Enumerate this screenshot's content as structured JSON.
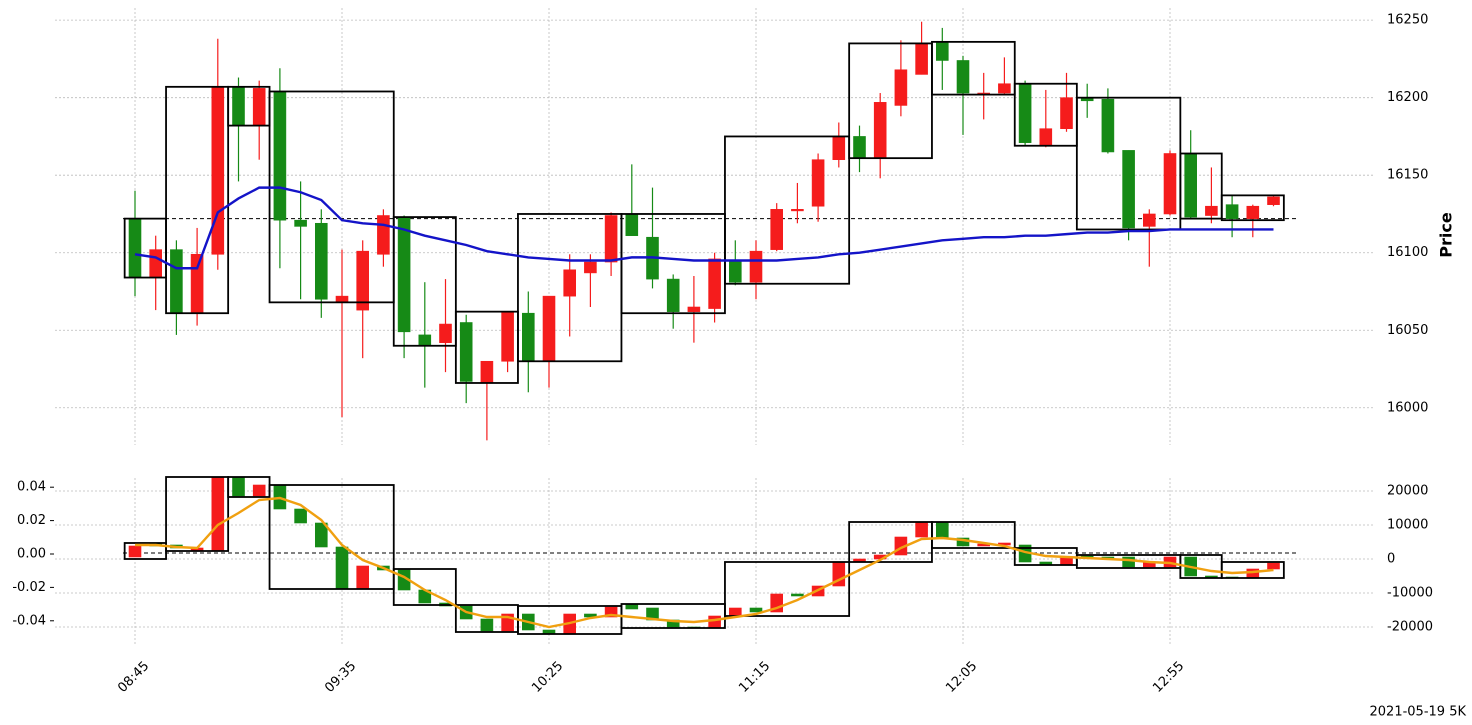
{
  "chart_data": [
    {
      "type": "candlestick",
      "y_label": "Price",
      "up_color": "#f51c1c",
      "down_color": "#168a16",
      "open": [
        16122,
        16084,
        16102,
        16061,
        16099,
        16207,
        16182,
        16204,
        16121,
        16119,
        16068,
        16063,
        16099,
        16123,
        16047,
        16042,
        16055,
        16016,
        16030,
        16061,
        16030,
        16072,
        16087,
        16094,
        16125,
        16110,
        16083,
        16062,
        16064,
        16095,
        16081,
        16102,
        16127,
        16130,
        16160,
        16175,
        16161,
        16195,
        16215,
        16236,
        16224,
        16202,
        16203,
        16209,
        16169,
        16180,
        16200,
        16199,
        16166,
        16117,
        16125,
        16164,
        16124,
        16131,
        16122,
        16131
      ],
      "high": [
        16140,
        16111,
        16108,
        16116,
        16238,
        16213,
        16211,
        16219,
        16146,
        16128,
        16102,
        16108,
        16128,
        16124,
        16081,
        16083,
        16060,
        16030,
        16062,
        16075,
        16072,
        16099,
        16099,
        16126,
        16157,
        16142,
        16086,
        16085,
        16100,
        16108,
        16108,
        16132,
        16145,
        16164,
        16184,
        16182,
        16203,
        16237,
        16249,
        16245,
        16227,
        16216,
        16226,
        16211,
        16205,
        16216,
        16209,
        16206,
        16166,
        16128,
        16166,
        16179,
        16155,
        16137,
        16131,
        16137
      ],
      "low": [
        16072,
        16063,
        16047,
        16053,
        16089,
        16146,
        16160,
        16090,
        16070,
        16058,
        15994,
        16032,
        16091,
        16032,
        16013,
        16023,
        16003,
        15979,
        16023,
        16010,
        16013,
        16046,
        16065,
        16085,
        16111,
        16077,
        16051,
        16042,
        16055,
        16079,
        16070,
        16101,
        16119,
        16120,
        16155,
        16152,
        16148,
        16188,
        16215,
        16205,
        16176,
        16186,
        16202,
        16169,
        16168,
        16178,
        16187,
        16164,
        16108,
        16091,
        16124,
        16122,
        16119,
        16110,
        16110,
        16130
      ],
      "close": [
        16084,
        16102,
        16061,
        16099,
        16207,
        16182,
        16206,
        16121,
        16117,
        16070,
        16072,
        16101,
        16124,
        16049,
        16040,
        16054,
        16017,
        16030,
        16062,
        16030,
        16072,
        16089,
        16094,
        16124,
        16111,
        16083,
        16062,
        16065,
        16096,
        16081,
        16101,
        16128,
        16128,
        16160,
        16175,
        16161,
        16197,
        16218,
        16235,
        16224,
        16203,
        16203,
        16209,
        16171,
        16180,
        16200,
        16198,
        16165,
        16116,
        16125,
        16164,
        16123,
        16130,
        16122,
        16130,
        16136
      ],
      "lines": [
        {
          "color": "#1414c8",
          "values": [
            16099,
            16097,
            16090,
            16090,
            16126,
            16135,
            16142,
            16142,
            16139,
            16134,
            16121,
            16119,
            16118,
            16115,
            16111,
            16108,
            16105,
            16101,
            16099,
            16097,
            16096,
            16095,
            16095,
            16095,
            16097,
            16097,
            16096,
            16095,
            16095,
            16095,
            16095,
            16095,
            16096,
            16097,
            16099,
            16100,
            16102,
            16104,
            16106,
            16108,
            16109,
            16110,
            16110,
            16111,
            16111,
            16112,
            16113,
            16113,
            16114,
            16114,
            16115,
            16115,
            16115,
            16115,
            16115,
            16115
          ]
        }
      ],
      "boxes": [
        {
          "from": 0,
          "to": 1,
          "top": 16122,
          "bottom": 16084
        },
        {
          "from": 2,
          "to": 4,
          "top": 16207,
          "bottom": 16061
        },
        {
          "from": 5,
          "to": 6,
          "top": 16207,
          "bottom": 16182
        },
        {
          "from": 7,
          "to": 12,
          "top": 16204,
          "bottom": 16068
        },
        {
          "from": 13,
          "to": 15,
          "top": 16123,
          "bottom": 16040
        },
        {
          "from": 16,
          "to": 18,
          "top": 16062,
          "bottom": 16016
        },
        {
          "from": 19,
          "to": 23,
          "top": 16125,
          "bottom": 16030
        },
        {
          "from": 24,
          "to": 28,
          "top": 16125,
          "bottom": 16061
        },
        {
          "from": 29,
          "to": 34,
          "top": 16175,
          "bottom": 16080
        },
        {
          "from": 35,
          "to": 38,
          "top": 16235,
          "bottom": 16161
        },
        {
          "from": 39,
          "to": 42,
          "top": 16236,
          "bottom": 16202
        },
        {
          "from": 43,
          "to": 45,
          "top": 16209,
          "bottom": 16169
        },
        {
          "from": 46,
          "to": 50,
          "top": 16200,
          "bottom": 16115
        },
        {
          "from": 51,
          "to": 52,
          "top": 16164,
          "bottom": 16122
        },
        {
          "from": 53,
          "to": 55,
          "top": 16137,
          "bottom": 16121
        }
      ],
      "reference_line": 16122,
      "ylim": [
        15976,
        16263
      ],
      "yticks": [
        16000,
        16050,
        16100,
        16150,
        16200,
        16250
      ],
      "grid": true
    },
    {
      "type": "candlestick",
      "up_color": "#f51c1c",
      "down_color": "#168a16",
      "categories": [
        "08:45",
        null,
        null,
        null,
        null,
        null,
        null,
        null,
        null,
        null,
        "09:35",
        null,
        null,
        null,
        null,
        null,
        null,
        null,
        null,
        null,
        "10:25",
        null,
        null,
        null,
        null,
        null,
        null,
        null,
        null,
        null,
        "11:15",
        null,
        null,
        null,
        null,
        null,
        null,
        null,
        null,
        null,
        "12:05",
        null,
        null,
        null,
        null,
        null,
        null,
        null,
        null,
        null,
        "12:55",
        null,
        null,
        null,
        null,
        null
      ],
      "open": [
        588,
        4704,
        4116,
        2352,
        2352,
        24108,
        18522,
        21756,
        14700,
        10584,
        3528,
        -8820,
        -2058,
        -3234,
        -9114,
        -12936,
        -13818,
        -17640,
        -21168,
        -16170,
        -20874,
        -22050,
        -16170,
        -17052,
        -13230,
        -14406,
        -17934,
        -19992,
        -20286,
        -16758,
        -14406,
        -15582,
        -10290,
        -10878,
        -7938,
        -882,
        0,
        1176,
        6468,
        10878,
        6174,
        3822,
        4116,
        4116,
        -882,
        -1764,
        882,
        588,
        588,
        -2352,
        -2352,
        588,
        -4998,
        -5292,
        -5586,
        -2940
      ],
      "close": [
        3822,
        3822,
        3234,
        3234,
        24108,
        18522,
        21756,
        14700,
        10584,
        3528,
        -8820,
        -2058,
        -3234,
        -9114,
        -12936,
        -13818,
        -17640,
        -21168,
        -16170,
        -20874,
        -22050,
        -16170,
        -17052,
        -14112,
        -14700,
        -17934,
        -19992,
        -20286,
        -16758,
        -14406,
        -15582,
        -10290,
        -10878,
        -7938,
        -882,
        0,
        1176,
        6468,
        10878,
        6174,
        3822,
        4410,
        4704,
        -882,
        -1764,
        588,
        294,
        0,
        -2352,
        -882,
        588,
        -4998,
        -5586,
        -5586,
        -2940,
        -1176
      ],
      "lines": [
        {
          "color": "#f0a010",
          "values": [
            4116,
            4116,
            3528,
            3234,
            9996,
            13524,
            17346,
            17934,
            15876,
            11466,
            4116,
            -294,
            -2646,
            -5292,
            -9114,
            -12054,
            -15582,
            -17052,
            -17052,
            -18522,
            -19992,
            -18816,
            -17346,
            -16464,
            -17052,
            -17640,
            -18228,
            -18522,
            -17934,
            -17052,
            -16170,
            -14406,
            -12054,
            -9114,
            -6174,
            -3234,
            -294,
            3234,
            5880,
            6174,
            5586,
            4704,
            3822,
            2058,
            882,
            588,
            294,
            0,
            -294,
            -882,
            -1176,
            -2352,
            -3528,
            -4116,
            -3822,
            -3234
          ]
        }
      ],
      "boxes": [
        {
          "from": 0,
          "to": 1,
          "top": 4704,
          "bottom": 0
        },
        {
          "from": 2,
          "to": 4,
          "top": 24108,
          "bottom": 2352
        },
        {
          "from": 5,
          "to": 6,
          "top": 24108,
          "bottom": 18228
        },
        {
          "from": 7,
          "to": 12,
          "top": 21756,
          "bottom": -8820
        },
        {
          "from": 13,
          "to": 15,
          "top": -2940,
          "bottom": -13524
        },
        {
          "from": 16,
          "to": 18,
          "top": -13524,
          "bottom": -21462
        },
        {
          "from": 19,
          "to": 23,
          "top": -13818,
          "bottom": -22050
        },
        {
          "from": 24,
          "to": 28,
          "top": -13230,
          "bottom": -20286
        },
        {
          "from": 29,
          "to": 34,
          "top": -882,
          "bottom": -16758
        },
        {
          "from": 35,
          "to": 38,
          "top": 10878,
          "bottom": -882
        },
        {
          "from": 39,
          "to": 42,
          "top": 10878,
          "bottom": 3234
        },
        {
          "from": 43,
          "to": 45,
          "top": 3234,
          "bottom": -1764
        },
        {
          "from": 46,
          "to": 50,
          "top": 1176,
          "bottom": -2646
        },
        {
          "from": 51,
          "to": 52,
          "top": 1176,
          "bottom": -5586
        },
        {
          "from": 53,
          "to": 55,
          "top": -882,
          "bottom": -5586
        }
      ],
      "reference_line": 1764,
      "ylim": [
        -0.0545,
        0.0503
      ],
      "yticks": [
        -0.04,
        -0.02,
        {
          "value": 0,
          "label": "0.00"
        },
        0.02,
        0.04
      ],
      "y2lim": [
        -25284,
        26166
      ],
      "y2ticks": [
        -20000,
        -10000,
        0,
        10000,
        20000
      ],
      "grid": true
    }
  ],
  "footer": "2021-05-19 5K"
}
